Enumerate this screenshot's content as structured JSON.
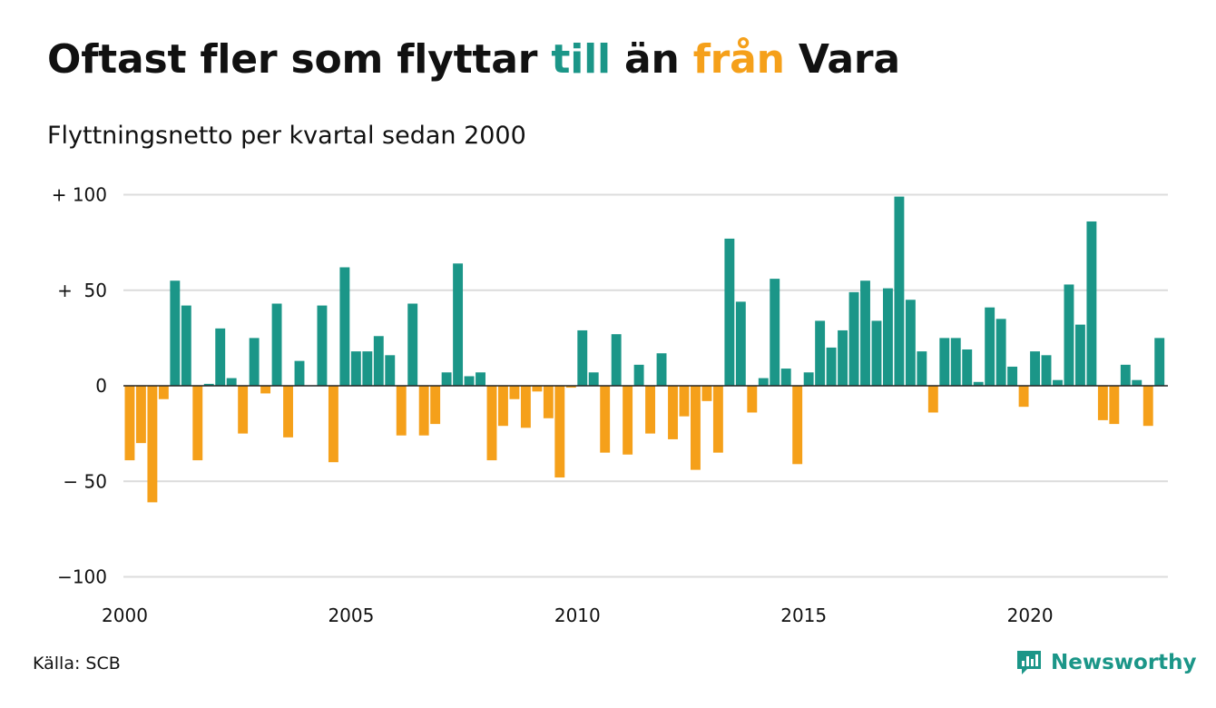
{
  "header": {
    "title_part1": "Oftast fler som flyttar ",
    "title_till": "till",
    "title_part2": " än ",
    "title_fran": "från",
    "title_part3": " Vara",
    "subtitle": "Flyttningsnetto per kvartal sedan 2000"
  },
  "footer": {
    "source": "Källa: SCB",
    "brand": "Newsworthy"
  },
  "colors": {
    "positive": "#1b9688",
    "negative": "#f5a01a",
    "grid": "#dcdcdc",
    "axis": "#222222"
  },
  "chart_data": {
    "type": "bar",
    "title": "Oftast fler som flyttar till än från Vara",
    "subtitle": "Flyttningsnetto per kvartal sedan 2000",
    "xlabel": "",
    "ylabel": "",
    "ylim": [
      -100,
      100
    ],
    "yticks": [
      {
        "value": 100,
        "label": "+ 100"
      },
      {
        "value": 50,
        "label": "+  50"
      },
      {
        "value": 0,
        "label": "0"
      },
      {
        "value": -50,
        "label": "− 50"
      },
      {
        "value": -100,
        "label": "−100"
      }
    ],
    "xticks": [
      "2000",
      "2005",
      "2010",
      "2015",
      "2020"
    ],
    "start_year": 2000,
    "grid": true,
    "legend": "none",
    "values": [
      -39,
      -30,
      -61,
      -7,
      55,
      42,
      -39,
      1,
      30,
      4,
      -25,
      25,
      -4,
      43,
      -27,
      13,
      0,
      42,
      -40,
      62,
      18,
      18,
      26,
      16,
      -26,
      43,
      -26,
      -20,
      7,
      64,
      5,
      7,
      -39,
      -21,
      -7,
      -22,
      -3,
      -17,
      -48,
      -1,
      29,
      7,
      -35,
      27,
      -36,
      11,
      -25,
      17,
      -28,
      -16,
      -44,
      -8,
      -35,
      77,
      44,
      -14,
      4,
      56,
      9,
      -41,
      7,
      34,
      20,
      29,
      49,
      55,
      34,
      51,
      99,
      45,
      18,
      -14,
      25,
      25,
      19,
      2,
      41,
      35,
      10,
      -11,
      18,
      16,
      3,
      53,
      32,
      86,
      -18,
      -20,
      11,
      3,
      -21,
      25
    ]
  }
}
